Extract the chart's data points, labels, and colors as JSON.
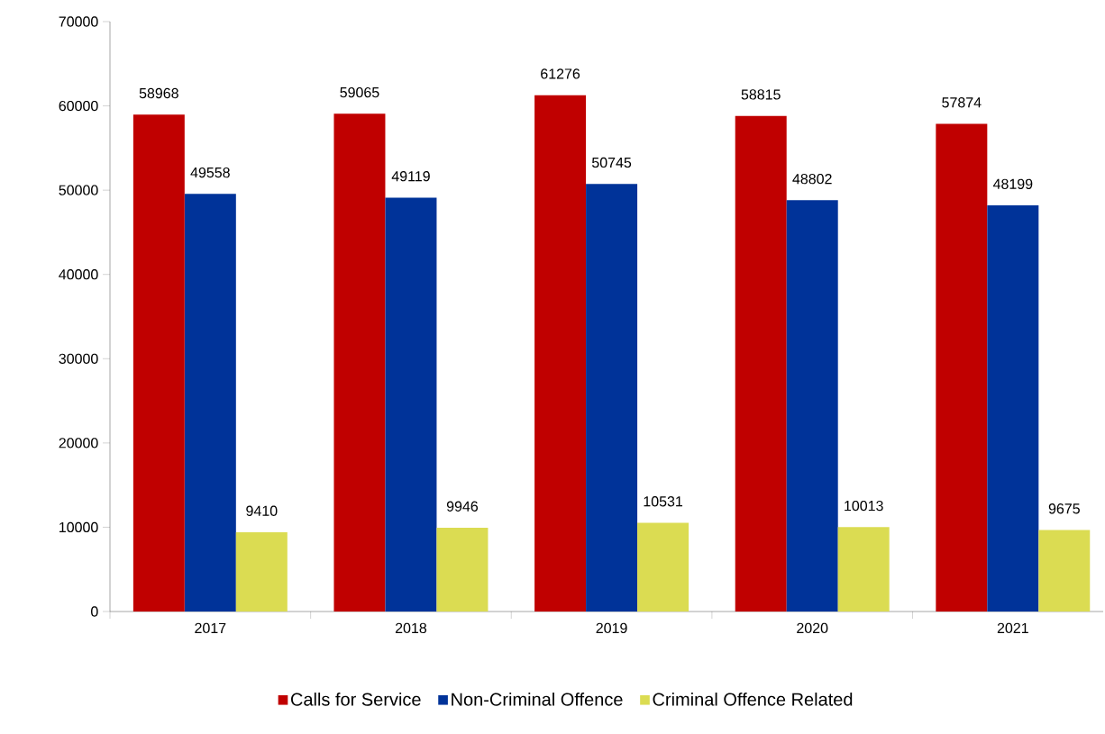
{
  "chart_data": {
    "type": "bar",
    "categories": [
      "2017",
      "2018",
      "2019",
      "2020",
      "2021"
    ],
    "series": [
      {
        "name": "Calls for Service",
        "color": "#c00000",
        "values": [
          58968,
          59065,
          61276,
          58815,
          57874
        ]
      },
      {
        "name": "Non-Criminal Offence",
        "color": "#003399",
        "values": [
          49558,
          49119,
          50745,
          48802,
          48199
        ]
      },
      {
        "name": "Criminal Offence Related",
        "color": "#dbdc52",
        "values": [
          9410,
          9946,
          10531,
          10013,
          9675
        ]
      }
    ],
    "ylim": [
      0,
      70000
    ],
    "yticks": [
      0,
      10000,
      20000,
      30000,
      40000,
      50000,
      60000,
      70000
    ],
    "data_labels": true,
    "grid": false,
    "legend": "bottom"
  }
}
